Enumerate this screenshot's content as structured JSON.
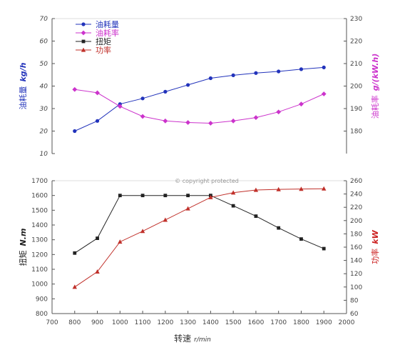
{
  "watermark": "© copyright protected",
  "chart_data": {
    "type": "line",
    "x": [
      800,
      900,
      1000,
      1100,
      1200,
      1300,
      1400,
      1500,
      1600,
      1700,
      1800,
      1900
    ],
    "xlabel": "转速",
    "xunit": "r/min",
    "xlim": [
      700,
      2000
    ],
    "xticks": [
      700,
      800,
      900,
      1000,
      1100,
      1200,
      1300,
      1400,
      1500,
      1600,
      1700,
      1800,
      1900,
      2000
    ],
    "grid": false,
    "legend_position": "top-left",
    "panels": [
      {
        "name": "top",
        "left_axis": {
          "label": "油耗量",
          "unit": "kg/h",
          "color": "#2233bb",
          "ylim": [
            10,
            70
          ],
          "ticks": [
            10,
            20,
            30,
            40,
            50,
            60,
            70
          ]
        },
        "right_axis": {
          "label": "油耗率",
          "unit": "g/(kW.h)",
          "color": "#cc33cc",
          "ylim": [
            170,
            230
          ],
          "ticks": [
            180,
            190,
            200,
            210,
            220,
            230
          ]
        },
        "series": [
          {
            "name": "油耗量",
            "axis": "left",
            "color": "#2233bb",
            "marker": "circle",
            "values": [
              20,
              24.5,
              32,
              34.5,
              37.5,
              40.5,
              43.5,
              44.8,
              45.8,
              46.5,
              47.5,
              48.3
            ]
          },
          {
            "name": "油耗率",
            "axis": "right",
            "color": "#cc33cc",
            "marker": "diamond",
            "values": [
              198.5,
              197,
              191,
              186.5,
              184.5,
              183.8,
              183.5,
              184.5,
              186,
              188.5,
              192,
              196.5
            ]
          }
        ]
      },
      {
        "name": "bottom",
        "left_axis": {
          "label": "扭矩",
          "unit": "N.m",
          "color": "#222222",
          "ylim": [
            800,
            1700
          ],
          "ticks": [
            800,
            900,
            1000,
            1100,
            1200,
            1300,
            1400,
            1500,
            1600,
            1700
          ]
        },
        "right_axis": {
          "label": "功率",
          "unit": "kW",
          "color": "#cc2222",
          "ylim": [
            60,
            260
          ],
          "ticks": [
            60,
            80,
            100,
            120,
            140,
            160,
            180,
            200,
            220,
            240,
            260
          ]
        },
        "series": [
          {
            "name": "扭矩",
            "axis": "left",
            "color": "#222222",
            "marker": "square",
            "values": [
              1210,
              1310,
              1600,
              1600,
              1600,
              1600,
              1600,
              1530,
              1460,
              1380,
              1305,
              1240
            ]
          },
          {
            "name": "功率",
            "axis": "right",
            "color": "#c0302a",
            "marker": "triangle",
            "values": [
              100,
              123,
              168,
              184,
              201,
              218,
              235,
              242,
              246,
              247,
              247.5,
              248
            ]
          }
        ]
      }
    ]
  }
}
